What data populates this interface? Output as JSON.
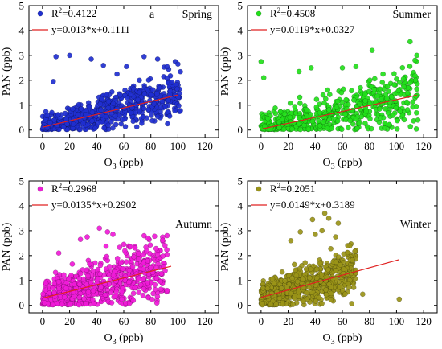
{
  "chart_data": [
    {
      "type": "scatter",
      "panel_letter": "a",
      "season": "Spring",
      "color": "#1f2fd0",
      "xlabel_main": "O",
      "xlabel_sub": "3",
      "xlabel_unit": " (ppb)",
      "ylabel": "PAN (ppb)",
      "xlim": [
        -10,
        130
      ],
      "ylim": [
        -0.3,
        5
      ],
      "xticks": [
        "0",
        "20",
        "40",
        "60",
        "80",
        "100",
        "120"
      ],
      "yticks": [
        "0",
        "1",
        "2",
        "3",
        "4",
        "5"
      ],
      "r2_prefix": "R",
      "r2_sup": "2",
      "r2_value": "=0.4122",
      "equation": "y=0.013*x+0.1111",
      "fit": {
        "slope": 0.013,
        "intercept": 0.1111,
        "x_range": [
          0,
          100
        ]
      },
      "point_cloud": {
        "n": 620,
        "x_range": [
          0,
          102
        ],
        "noise": 0.32,
        "seed": 11
      },
      "outliers": [
        [
          10,
          2.95
        ],
        [
          20,
          3.0
        ],
        [
          8,
          1.95
        ],
        [
          36,
          2.85
        ],
        [
          45,
          2.6
        ],
        [
          62,
          2.55
        ],
        [
          85,
          2.85
        ],
        [
          75,
          2.95
        ],
        [
          98,
          2.75
        ],
        [
          92,
          2.55
        ],
        [
          100,
          2.65
        ],
        [
          55,
          2.25
        ]
      ]
    },
    {
      "type": "scatter",
      "panel_letter": "",
      "season": "Summer",
      "color": "#22e01a",
      "xlabel_main": "O",
      "xlabel_sub": "3",
      "xlabel_unit": " (ppb)",
      "ylabel": "PAN (ppb)",
      "xlim": [
        -10,
        130
      ],
      "ylim": [
        -0.3,
        5
      ],
      "xticks": [
        "0",
        "20",
        "40",
        "60",
        "80",
        "100",
        "120"
      ],
      "yticks": [
        "0",
        "1",
        "2",
        "3",
        "4",
        "5"
      ],
      "r2_prefix": "R",
      "r2_sup": "2",
      "r2_value": "=0.4508",
      "equation": "y=0.0119*x+0.0327",
      "fit": {
        "slope": 0.0119,
        "intercept": 0.0327,
        "x_range": [
          0,
          115
        ]
      },
      "point_cloud": {
        "n": 560,
        "x_range": [
          0,
          116
        ],
        "noise": 0.38,
        "seed": 23
      },
      "outliers": [
        [
          0,
          2.75
        ],
        [
          37,
          2.5
        ],
        [
          60,
          2.5
        ],
        [
          70,
          2.55
        ],
        [
          82,
          3.2
        ],
        [
          110,
          3.55
        ],
        [
          115,
          3.0
        ],
        [
          114,
          2.0
        ],
        [
          90,
          2.25
        ],
        [
          100,
          2.05
        ],
        [
          2,
          2.1
        ],
        [
          28,
          2.35
        ]
      ]
    },
    {
      "type": "scatter",
      "panel_letter": "",
      "season": "Autumn",
      "color": "#f01ad8",
      "xlabel_main": "O",
      "xlabel_sub": "3",
      "xlabel_unit": " (ppb)",
      "ylabel": "PAN (ppb)",
      "xlim": [
        -10,
        130
      ],
      "ylim": [
        -0.3,
        5
      ],
      "xticks": [
        "0",
        "20",
        "40",
        "60",
        "80",
        "100",
        "120"
      ],
      "yticks": [
        "0",
        "1",
        "2",
        "3",
        "4",
        "5"
      ],
      "r2_prefix": "R",
      "r2_sup": "2",
      "r2_value": "=0.2968",
      "equation": "y=0.0135*x+0.2902",
      "fit": {
        "slope": 0.0135,
        "intercept": 0.2902,
        "x_range": [
          0,
          95
        ]
      },
      "point_cloud": {
        "n": 620,
        "x_range": [
          0,
          92
        ],
        "noise": 0.48,
        "seed": 37
      },
      "outliers": [
        [
          42,
          3.1
        ],
        [
          48,
          2.95
        ],
        [
          52,
          2.85
        ],
        [
          33,
          2.75
        ],
        [
          75,
          2.8
        ],
        [
          78,
          2.7
        ],
        [
          60,
          2.45
        ],
        [
          28,
          2.65
        ],
        [
          85,
          2.05
        ],
        [
          92,
          0.6
        ],
        [
          12,
          2.1
        ],
        [
          65,
          2.35
        ]
      ]
    },
    {
      "type": "scatter",
      "panel_letter": "",
      "season": "Winter",
      "color": "#9a9418",
      "xlabel_main": "O",
      "xlabel_sub": "3",
      "xlabel_unit": " (ppb)",
      "ylabel": "PAN (ppb)",
      "xlim": [
        -10,
        130
      ],
      "ylim": [
        -0.3,
        5
      ],
      "xticks": [
        "0",
        "20",
        "40",
        "60",
        "80",
        "100",
        "120"
      ],
      "yticks": [
        "0",
        "1",
        "2",
        "3",
        "4",
        "5"
      ],
      "r2_prefix": "R",
      "r2_sup": "2",
      "r2_value": "=0.2051",
      "equation": "y=0.0149*x+0.3189",
      "fit": {
        "slope": 0.0149,
        "intercept": 0.3189,
        "x_range": [
          0,
          102
        ]
      },
      "point_cloud": {
        "n": 620,
        "x_range": [
          0,
          70
        ],
        "noise": 0.42,
        "seed": 51
      },
      "outliers": [
        [
          47,
          3.7
        ],
        [
          50,
          3.5
        ],
        [
          38,
          3.45
        ],
        [
          57,
          3.3
        ],
        [
          29,
          2.95
        ],
        [
          45,
          3.0
        ],
        [
          40,
          2.85
        ],
        [
          64,
          2.4
        ],
        [
          102,
          0.25
        ],
        [
          75,
          0.45
        ],
        [
          22,
          2.6
        ],
        [
          55,
          2.75
        ]
      ]
    }
  ]
}
